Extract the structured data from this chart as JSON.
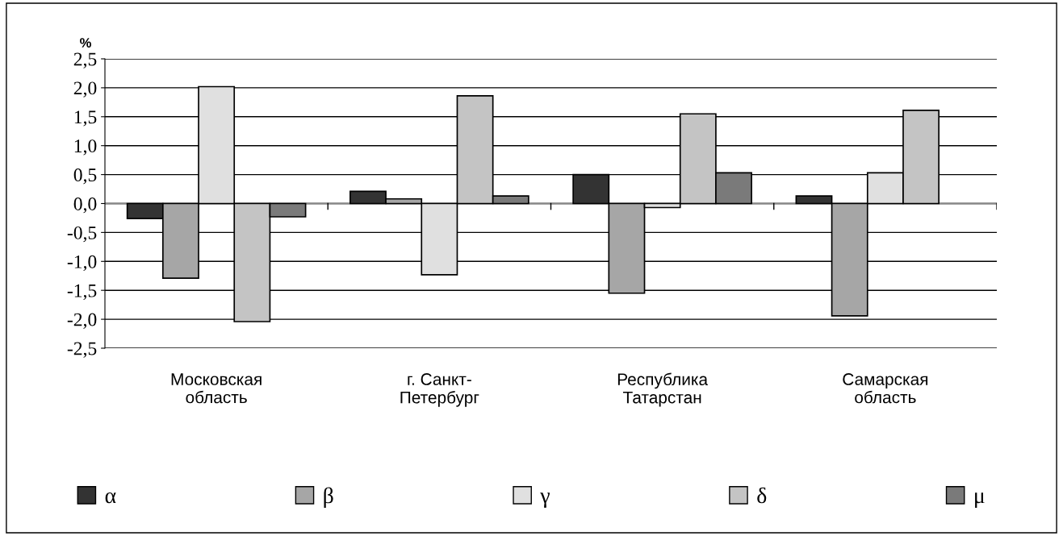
{
  "chart_data": {
    "type": "bar",
    "ylabel": "%",
    "categories": [
      "Московская\nобласть",
      "г. Санкт-\nПетербург",
      "Республика\nТатарстан",
      "Самарская\nобласть"
    ],
    "series": [
      {
        "name": "α",
        "color": "#333333",
        "values": [
          -0.26,
          0.21,
          0.5,
          0.13
        ]
      },
      {
        "name": "β",
        "color": "#a6a6a6",
        "values": [
          -1.29,
          0.08,
          -1.55,
          -1.94
        ]
      },
      {
        "name": "γ",
        "color": "#e0e0e0",
        "values": [
          2.02,
          -1.23,
          -0.07,
          0.53
        ]
      },
      {
        "name": "δ",
        "color": "#c4c4c4",
        "values": [
          -2.04,
          1.86,
          1.55,
          1.61
        ]
      },
      {
        "name": "μ",
        "color": "#7a7a7a",
        "values": [
          -0.23,
          0.13,
          0.53,
          null
        ]
      }
    ],
    "ylim": [
      -2.5,
      2.5
    ],
    "yticks": [
      {
        "value": -2.5,
        "label": "-2,5"
      },
      {
        "value": -2.0,
        "label": "-2,0"
      },
      {
        "value": -1.5,
        "label": "-1,5"
      },
      {
        "value": -1.0,
        "label": "-1,0"
      },
      {
        "value": -0.5,
        "label": "-0,5"
      },
      {
        "value": 0.0,
        "label": "0,0"
      },
      {
        "value": 0.5,
        "label": "0,5"
      },
      {
        "value": 1.0,
        "label": "1,0"
      },
      {
        "value": 1.5,
        "label": "1,5"
      },
      {
        "value": 2.0,
        "label": "2,0"
      },
      {
        "value": 2.5,
        "label": "2,5"
      }
    ],
    "grid": "y",
    "legend": "bottom"
  }
}
